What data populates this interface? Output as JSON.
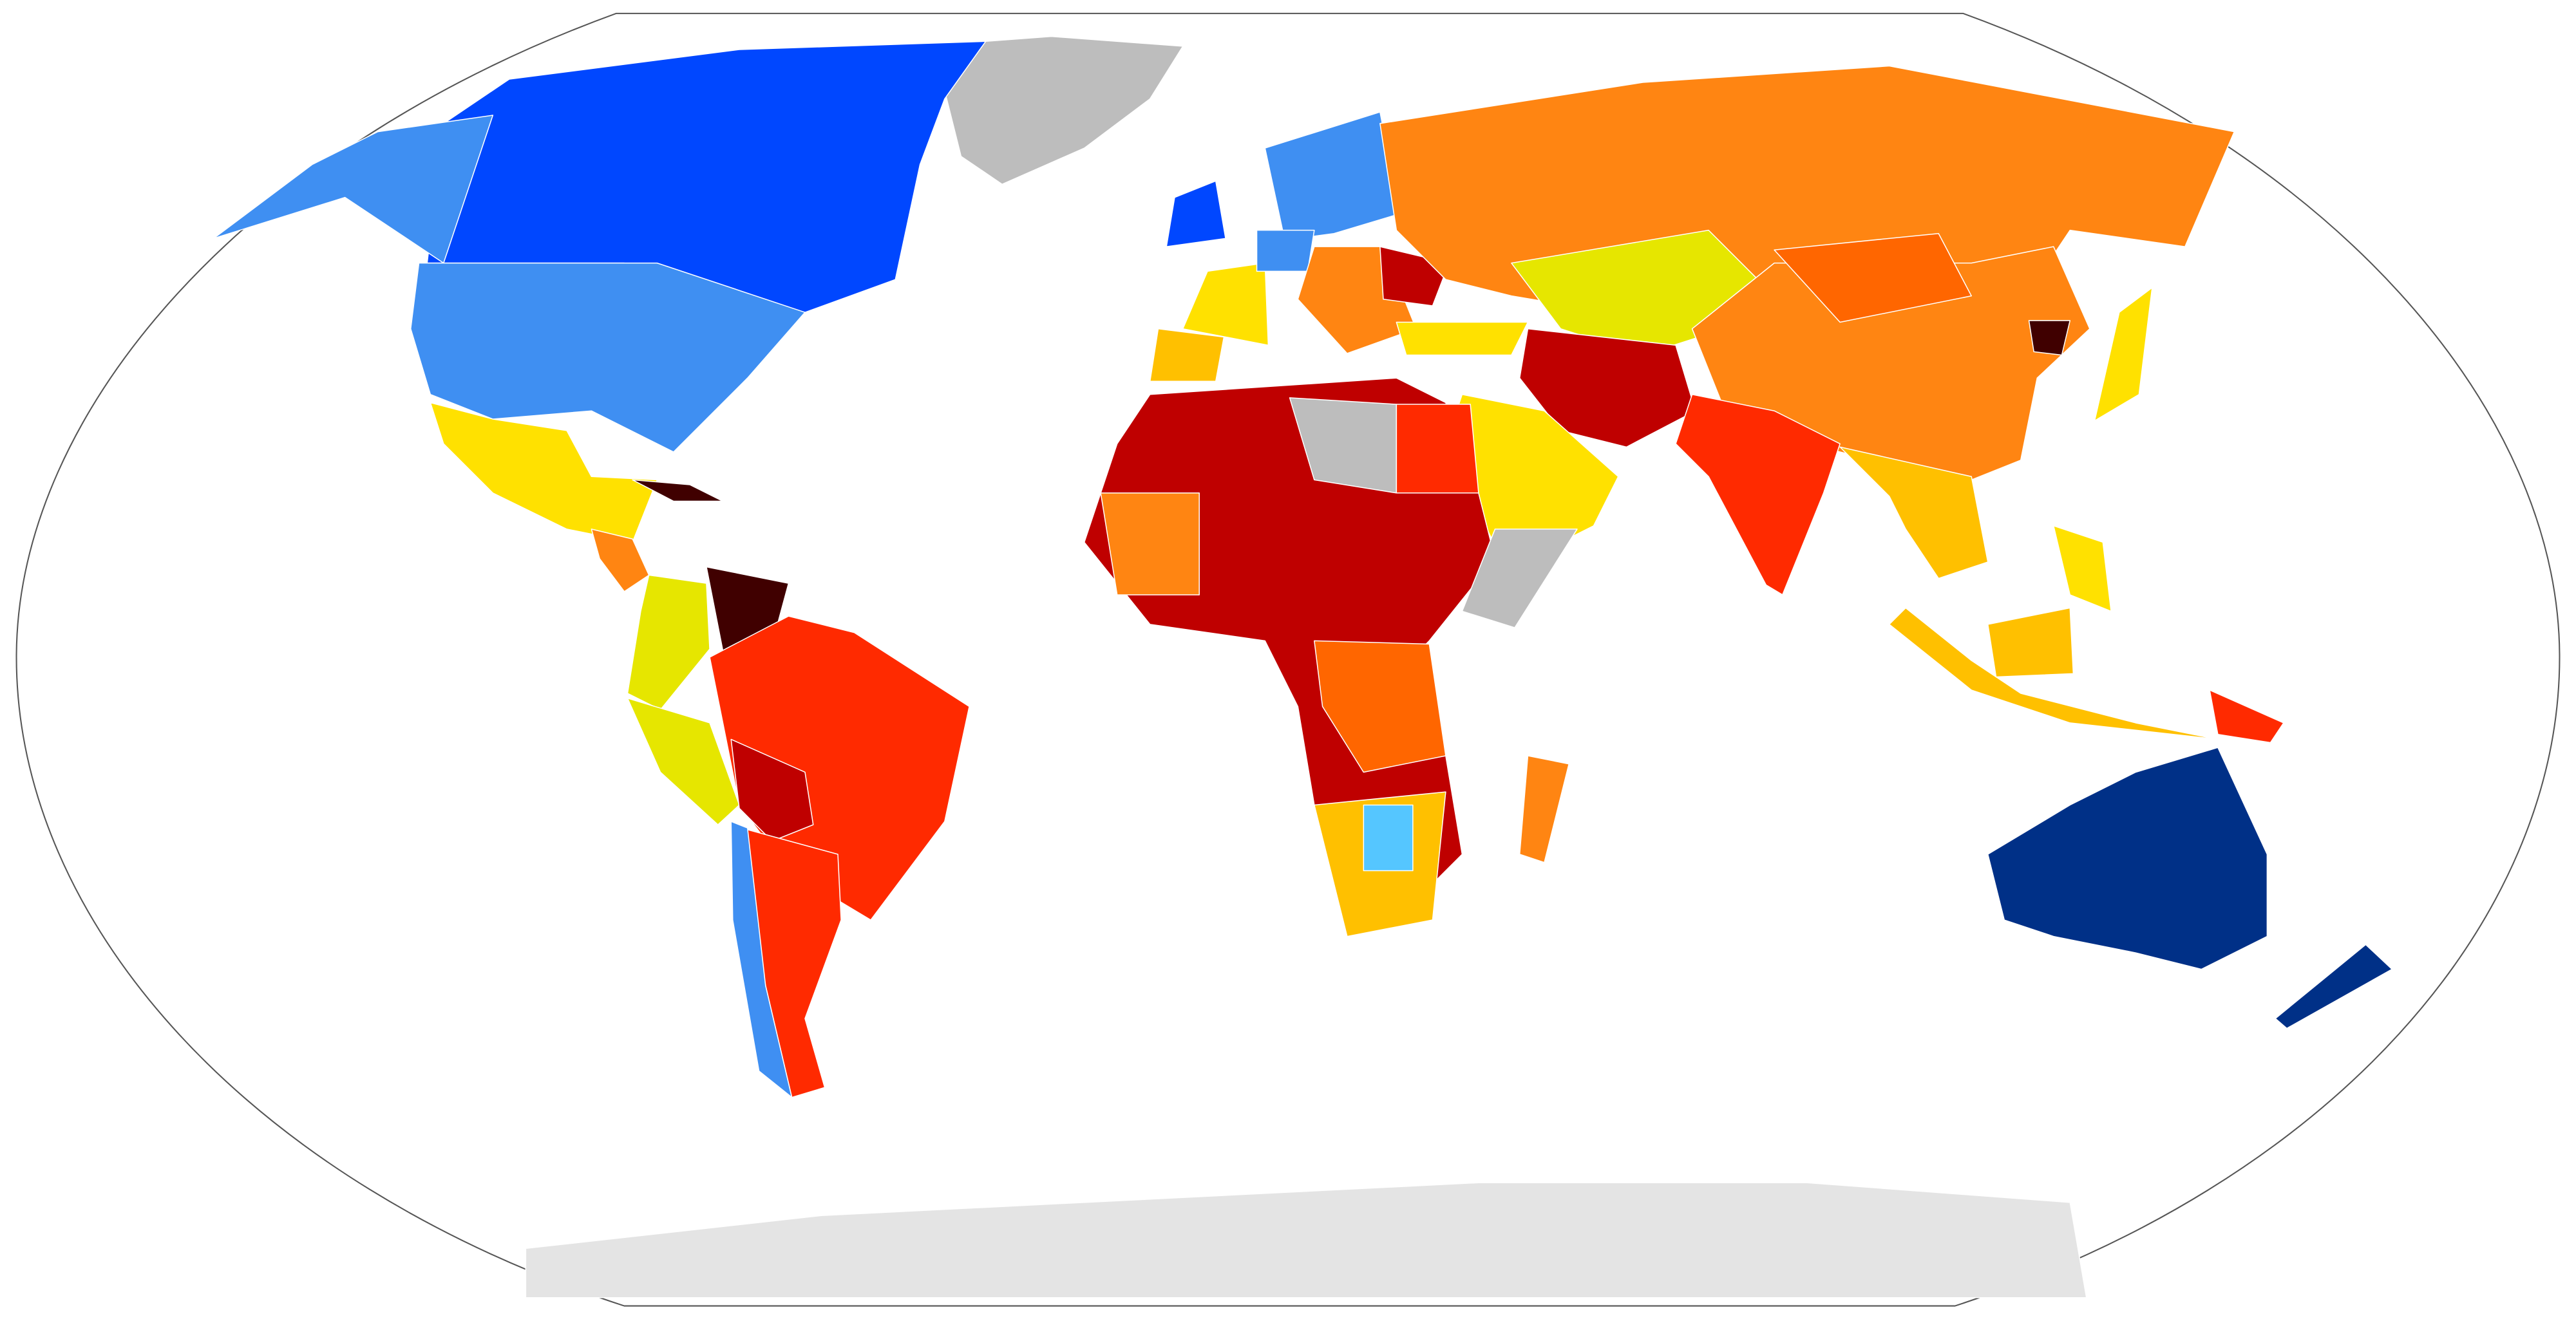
{
  "map": {
    "colors": [
      "#0047ff",
      "#3f8ff2",
      "#003087",
      "#55c6ff",
      "#bdbdbd",
      "#e4e4e4",
      "#e6e600",
      "#ffe100",
      "#ffc000",
      "#ff8512",
      "#ff6600",
      "#ff2a00",
      "#bf0000",
      "#400000"
    ]
  }
}
